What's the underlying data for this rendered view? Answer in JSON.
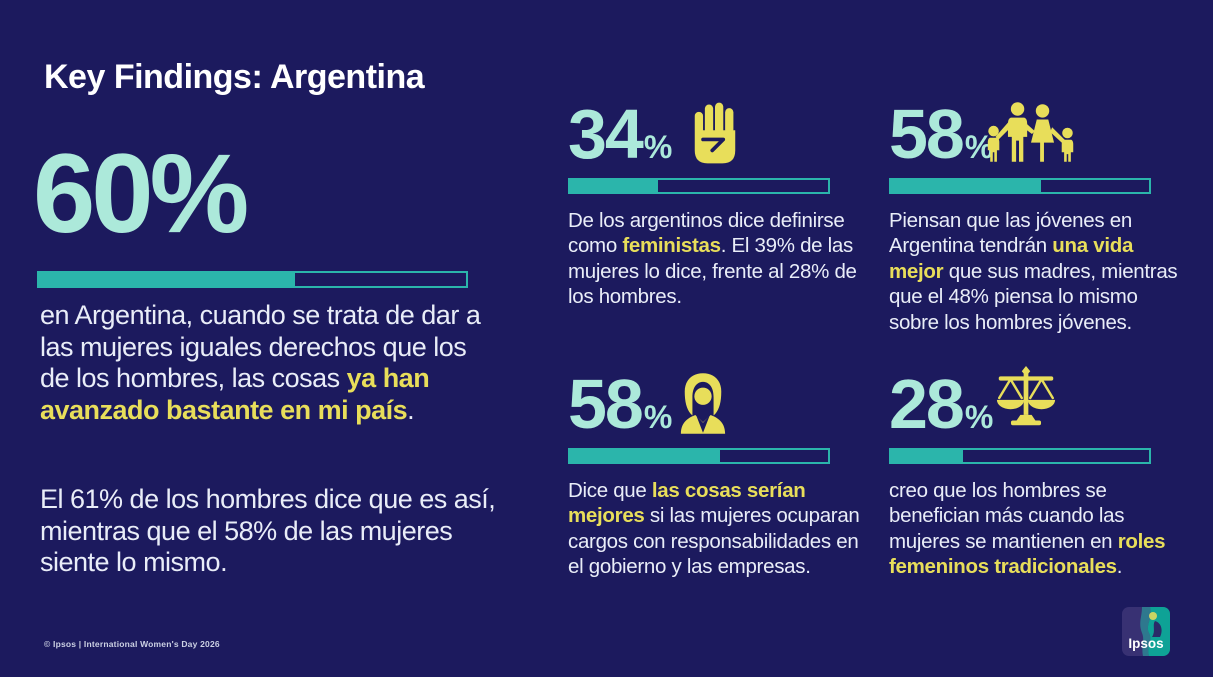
{
  "title": "Key Findings: Argentina",
  "footer": "© Ipsos | International Women's Day 2026",
  "logo": {
    "text": "Ipsos"
  },
  "colors": {
    "background": "#1c1a5e",
    "mint_number": "#ace9da",
    "teal_bar": "#2bb5ab",
    "yellow_highlight": "#e8de5a",
    "body_text": "#e9edf8",
    "title_text": "#ffffff",
    "logo_left": "#383173",
    "logo_right": "#0ea296"
  },
  "hero": {
    "value": "60%",
    "pct": 60,
    "paragraph1": [
      {
        "t": "en Argentina, cuando se trata de dar a las mujeres iguales derechos que los de los hombres, las cosas ",
        "h": false
      },
      {
        "t": "ya han avanzado bastante en mi país",
        "h": true
      },
      {
        "t": ".",
        "h": false
      }
    ],
    "paragraph2": "El 61% de los hombres dice que es así, mientras que el 58% de las mujeres siente lo mismo."
  },
  "stats": [
    {
      "value": "34",
      "percent_sign": "%",
      "pct": 34,
      "icon": "raised-fist",
      "text": [
        {
          "t": "De los argentinos dice definirse como ",
          "h": false
        },
        {
          "t": "feministas",
          "h": true
        },
        {
          "t": ". El 39% de las mujeres lo dice, frente al 28% de los hombres.",
          "h": false
        }
      ]
    },
    {
      "value": "58",
      "percent_sign": "%",
      "pct": 58,
      "icon": "family",
      "text": [
        {
          "t": "Piensan que las jóvenes en Argentina tendrán ",
          "h": false
        },
        {
          "t": "una vida mejor",
          "h": true
        },
        {
          "t": " que sus madres, mientras que el 48% piensa lo mismo sobre los hombres jóvenes.",
          "h": false
        }
      ]
    },
    {
      "value": "58",
      "percent_sign": "%",
      "pct": 58,
      "icon": "businesswoman",
      "text": [
        {
          "t": "Dice que ",
          "h": false
        },
        {
          "t": "las cosas serían mejores",
          "h": true
        },
        {
          "t": " si las mujeres ocuparan cargos con responsabilidades en el gobierno y las empresas.",
          "h": false
        }
      ]
    },
    {
      "value": "28",
      "percent_sign": "%",
      "pct": 28,
      "icon": "scales-of-justice",
      "text": [
        {
          "t": "creo que los hombres se benefician más cuando las mujeres se mantienen en ",
          "h": false
        },
        {
          "t": "roles femeninos tradicionales",
          "h": true
        },
        {
          "t": ".",
          "h": false
        }
      ]
    }
  ],
  "chart_data": {
    "type": "bar",
    "title": "Key Findings: Argentina",
    "unit": "%",
    "xlim": [
      0,
      100
    ],
    "categories": [
      "Cuando se trata de dar a las mujeres iguales derechos que los de los hombres, las cosas ya han avanzado bastante en mi país (61% de los hombres, 58% de las mujeres)",
      "De los argentinos dice definirse como feministas (39% de las mujeres, 28% de los hombres)",
      "Piensan que las jóvenes en Argentina tendrán una vida mejor que sus madres (48% piensa lo mismo sobre los hombres jóvenes)",
      "Dice que las cosas serían mejores si las mujeres ocuparan cargos con responsabilidades en el gobierno y las empresas",
      "Creo que los hombres se benefician más cuando las mujeres se mantienen en roles femeninos tradicionales"
    ],
    "values": [
      60,
      34,
      58,
      58,
      28
    ],
    "legend": null,
    "grid": false
  }
}
